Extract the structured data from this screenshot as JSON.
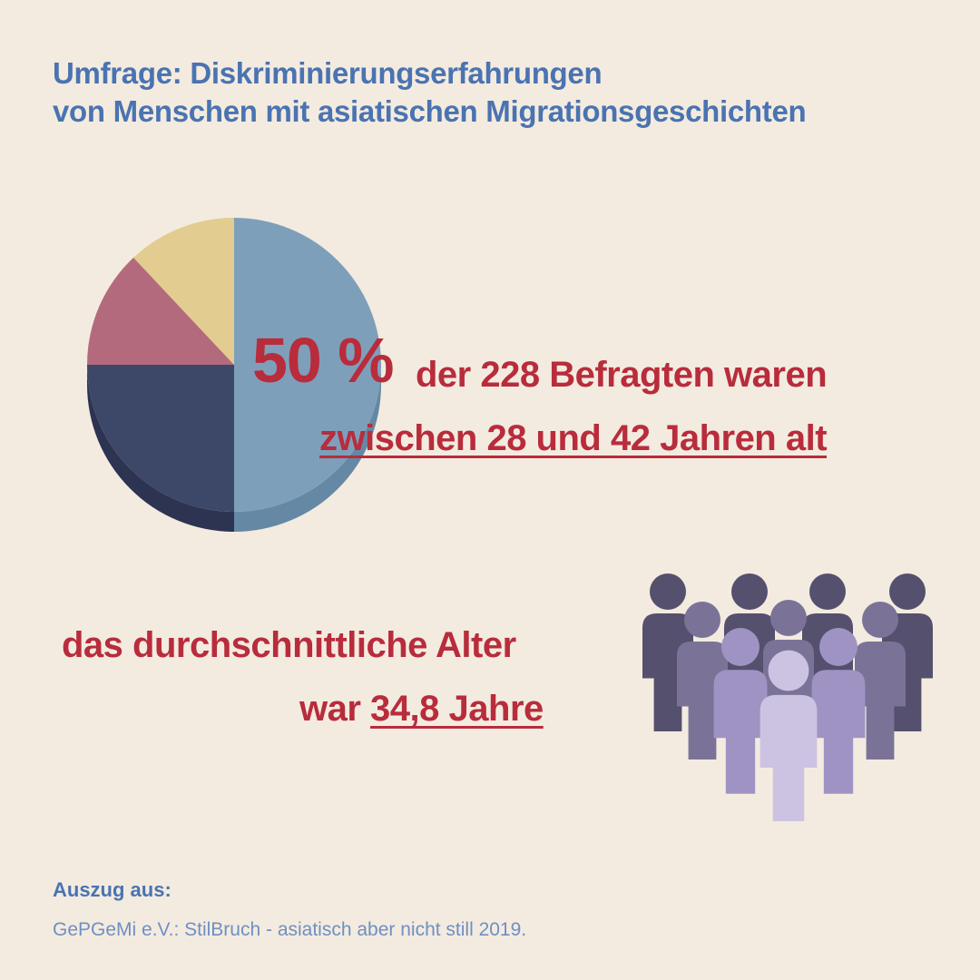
{
  "title": {
    "line1": "Umfrage: Diskriminierungserfahrungen",
    "line2": "von Menschen mit asiatischen Migrationsgeschichten"
  },
  "chart_data": {
    "type": "pie",
    "slices": [
      {
        "value": 50,
        "color": "#7e9fba",
        "shade": "#6588a4"
      },
      {
        "value": 25,
        "color": "#3d4768",
        "shade": "#2c3452"
      },
      {
        "value": 13,
        "color": "#b46a7d",
        "shade": "#9a5567"
      },
      {
        "value": 12,
        "color": "#e3cc8f",
        "shade": "#c8b077"
      }
    ]
  },
  "highlight": {
    "percent": "50 %",
    "text1": "der 228 Befragten waren",
    "text2": "zwischen 28 und 42 Jahren alt"
  },
  "average": {
    "line1": "das durchschnittliche Alter",
    "prefix": "war ",
    "value": "34,8 Jahre "
  },
  "people_colors": {
    "back": "#55506d",
    "middle": "#7b7397",
    "front": "#9f93c4",
    "center": "#ccc3e2"
  },
  "source": {
    "label": "Auszug aus:",
    "text": "GePGeMi e.V.: StilBruch - asiatisch aber nicht still 2019."
  }
}
